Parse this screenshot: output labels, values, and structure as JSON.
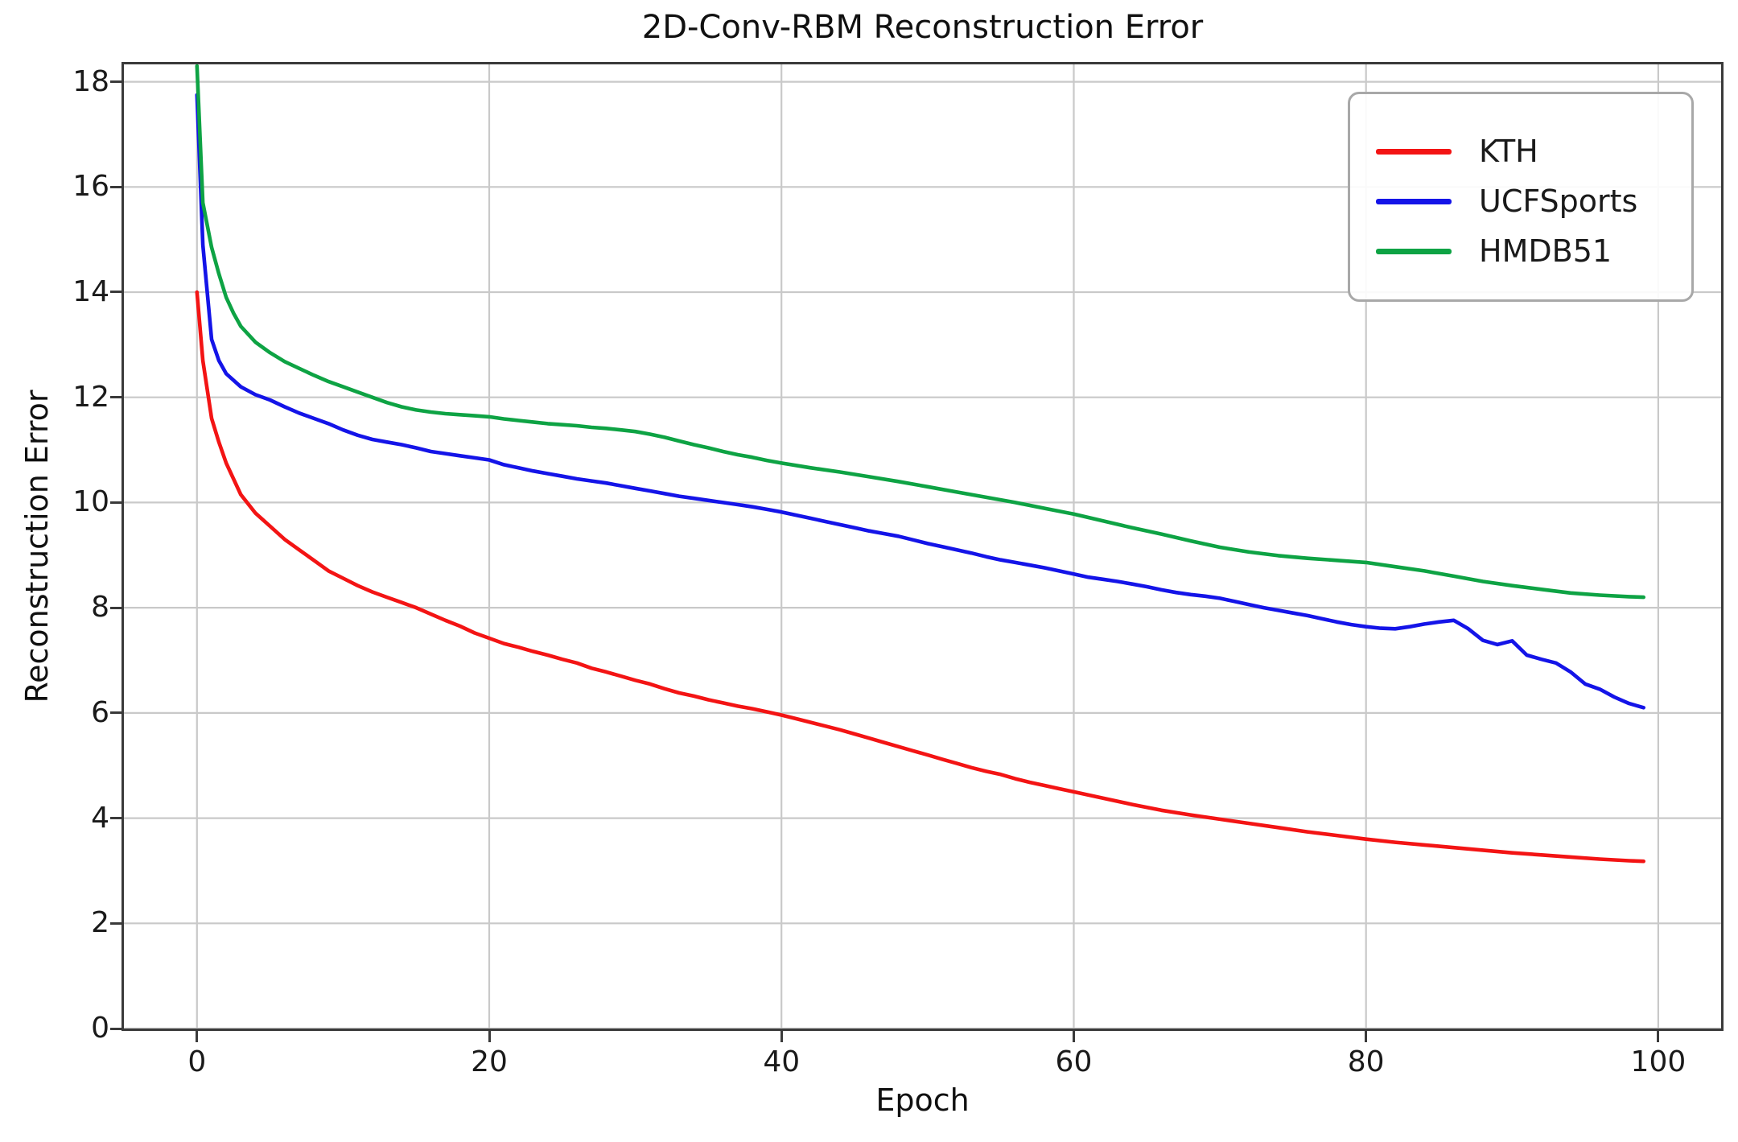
{
  "figure": {
    "title": "2D-Conv-RBM Reconstruction Error",
    "xlabel": "Epoch",
    "ylabel": "Reconstruction Error"
  },
  "colors": {
    "grid": "#c9c9c9",
    "spine": "#3a3a3a",
    "kth": "#f31414",
    "ucfsports": "#1414e8",
    "hmdb51": "#0ea344"
  },
  "chart_data": {
    "type": "line",
    "title": "2D-Conv-RBM Reconstruction Error",
    "xlabel": "Epoch",
    "ylabel": "Reconstruction Error",
    "xlim": [
      -5.0,
      104.3
    ],
    "ylim": [
      0,
      18.33
    ],
    "x_ticks": [
      0,
      20,
      40,
      60,
      80,
      100
    ],
    "y_ticks": [
      0,
      2,
      4,
      6,
      8,
      10,
      12,
      14,
      16,
      18
    ],
    "grid": true,
    "legend_position": "upper right",
    "series": [
      {
        "name": "KTH",
        "color": "#f31414",
        "points": [
          [
            0,
            14.0
          ],
          [
            0.4,
            12.7
          ],
          [
            1,
            11.6
          ],
          [
            1.5,
            11.15
          ],
          [
            2,
            10.75
          ],
          [
            2.5,
            10.45
          ],
          [
            3,
            10.15
          ],
          [
            4,
            9.8
          ],
          [
            5,
            9.55
          ],
          [
            6,
            9.3
          ],
          [
            7,
            9.1
          ],
          [
            8,
            8.9
          ],
          [
            9,
            8.7
          ],
          [
            10,
            8.56
          ],
          [
            11,
            8.42
          ],
          [
            12,
            8.3
          ],
          [
            13,
            8.2
          ],
          [
            14,
            8.1
          ],
          [
            15,
            8.0
          ],
          [
            16,
            7.88
          ],
          [
            17,
            7.76
          ],
          [
            18,
            7.65
          ],
          [
            19,
            7.52
          ],
          [
            20,
            7.42
          ],
          [
            21,
            7.32
          ],
          [
            22,
            7.25
          ],
          [
            23,
            7.17
          ],
          [
            24,
            7.1
          ],
          [
            25,
            7.02
          ],
          [
            26,
            6.95
          ],
          [
            27,
            6.85
          ],
          [
            28,
            6.78
          ],
          [
            29,
            6.7
          ],
          [
            30,
            6.62
          ],
          [
            31,
            6.55
          ],
          [
            32,
            6.46
          ],
          [
            33,
            6.38
          ],
          [
            34,
            6.32
          ],
          [
            35,
            6.25
          ],
          [
            36,
            6.19
          ],
          [
            37,
            6.13
          ],
          [
            38,
            6.08
          ],
          [
            39,
            6.02
          ],
          [
            40,
            5.96
          ],
          [
            41,
            5.89
          ],
          [
            42,
            5.82
          ],
          [
            43,
            5.75
          ],
          [
            44,
            5.68
          ],
          [
            45,
            5.6
          ],
          [
            46,
            5.52
          ],
          [
            47,
            5.44
          ],
          [
            48,
            5.36
          ],
          [
            49,
            5.28
          ],
          [
            50,
            5.2
          ],
          [
            51,
            5.12
          ],
          [
            52,
            5.04
          ],
          [
            53,
            4.96
          ],
          [
            54,
            4.89
          ],
          [
            55,
            4.83
          ],
          [
            56,
            4.75
          ],
          [
            57,
            4.68
          ],
          [
            58,
            4.62
          ],
          [
            59,
            4.56
          ],
          [
            60,
            4.5
          ],
          [
            62,
            4.38
          ],
          [
            64,
            4.26
          ],
          [
            66,
            4.15
          ],
          [
            68,
            4.06
          ],
          [
            70,
            3.98
          ],
          [
            72,
            3.9
          ],
          [
            74,
            3.82
          ],
          [
            76,
            3.74
          ],
          [
            78,
            3.67
          ],
          [
            80,
            3.6
          ],
          [
            82,
            3.54
          ],
          [
            84,
            3.49
          ],
          [
            86,
            3.44
          ],
          [
            88,
            3.39
          ],
          [
            90,
            3.34
          ],
          [
            92,
            3.3
          ],
          [
            94,
            3.26
          ],
          [
            96,
            3.22
          ],
          [
            98,
            3.19
          ],
          [
            99,
            3.18
          ]
        ]
      },
      {
        "name": "UCFSports",
        "color": "#1414e8",
        "points": [
          [
            0,
            17.75
          ],
          [
            0.4,
            14.9
          ],
          [
            1,
            13.1
          ],
          [
            1.5,
            12.7
          ],
          [
            2,
            12.45
          ],
          [
            3,
            12.2
          ],
          [
            4,
            12.05
          ],
          [
            5,
            11.95
          ],
          [
            6,
            11.82
          ],
          [
            7,
            11.7
          ],
          [
            8,
            11.6
          ],
          [
            9,
            11.5
          ],
          [
            10,
            11.38
          ],
          [
            11,
            11.28
          ],
          [
            12,
            11.2
          ],
          [
            13,
            11.15
          ],
          [
            14,
            11.1
          ],
          [
            15,
            11.04
          ],
          [
            16,
            10.97
          ],
          [
            17,
            10.93
          ],
          [
            18,
            10.89
          ],
          [
            19,
            10.85
          ],
          [
            20,
            10.81
          ],
          [
            21,
            10.72
          ],
          [
            22,
            10.66
          ],
          [
            23,
            10.6
          ],
          [
            24,
            10.55
          ],
          [
            25,
            10.5
          ],
          [
            26,
            10.45
          ],
          [
            27,
            10.41
          ],
          [
            28,
            10.37
          ],
          [
            29,
            10.32
          ],
          [
            30,
            10.27
          ],
          [
            31,
            10.22
          ],
          [
            32,
            10.17
          ],
          [
            33,
            10.12
          ],
          [
            34,
            10.08
          ],
          [
            35,
            10.04
          ],
          [
            36,
            10.0
          ],
          [
            37,
            9.96
          ],
          [
            38,
            9.92
          ],
          [
            39,
            9.87
          ],
          [
            40,
            9.82
          ],
          [
            41,
            9.76
          ],
          [
            42,
            9.7
          ],
          [
            43,
            9.64
          ],
          [
            44,
            9.58
          ],
          [
            45,
            9.52
          ],
          [
            46,
            9.46
          ],
          [
            47,
            9.41
          ],
          [
            48,
            9.36
          ],
          [
            49,
            9.29
          ],
          [
            50,
            9.22
          ],
          [
            51,
            9.16
          ],
          [
            52,
            9.1
          ],
          [
            53,
            9.04
          ],
          [
            54,
            8.97
          ],
          [
            55,
            8.91
          ],
          [
            56,
            8.86
          ],
          [
            57,
            8.81
          ],
          [
            58,
            8.76
          ],
          [
            59,
            8.7
          ],
          [
            60,
            8.64
          ],
          [
            61,
            8.58
          ],
          [
            62,
            8.54
          ],
          [
            63,
            8.5
          ],
          [
            64,
            8.45
          ],
          [
            65,
            8.4
          ],
          [
            66,
            8.34
          ],
          [
            67,
            8.29
          ],
          [
            68,
            8.25
          ],
          [
            69,
            8.22
          ],
          [
            70,
            8.18
          ],
          [
            71,
            8.12
          ],
          [
            72,
            8.06
          ],
          [
            73,
            8.0
          ],
          [
            74,
            7.95
          ],
          [
            75,
            7.9
          ],
          [
            76,
            7.85
          ],
          [
            77,
            7.79
          ],
          [
            78,
            7.73
          ],
          [
            79,
            7.68
          ],
          [
            80,
            7.64
          ],
          [
            81,
            7.61
          ],
          [
            82,
            7.6
          ],
          [
            83,
            7.64
          ],
          [
            84,
            7.69
          ],
          [
            85,
            7.73
          ],
          [
            86,
            7.76
          ],
          [
            87,
            7.6
          ],
          [
            88,
            7.38
          ],
          [
            89,
            7.3
          ],
          [
            90,
            7.37
          ],
          [
            91,
            7.1
          ],
          [
            92,
            7.02
          ],
          [
            93,
            6.95
          ],
          [
            94,
            6.78
          ],
          [
            95,
            6.55
          ],
          [
            96,
            6.45
          ],
          [
            97,
            6.3
          ],
          [
            98,
            6.18
          ],
          [
            99,
            6.1
          ]
        ]
      },
      {
        "name": "HMDB51",
        "color": "#0ea344",
        "points": [
          [
            0,
            18.3
          ],
          [
            0.4,
            15.7
          ],
          [
            1,
            14.85
          ],
          [
            1.5,
            14.35
          ],
          [
            2,
            13.9
          ],
          [
            2.5,
            13.6
          ],
          [
            3,
            13.35
          ],
          [
            4,
            13.05
          ],
          [
            5,
            12.85
          ],
          [
            6,
            12.68
          ],
          [
            7,
            12.55
          ],
          [
            8,
            12.42
          ],
          [
            9,
            12.3
          ],
          [
            10,
            12.2
          ],
          [
            11,
            12.1
          ],
          [
            12,
            12.0
          ],
          [
            13,
            11.9
          ],
          [
            14,
            11.82
          ],
          [
            15,
            11.76
          ],
          [
            16,
            11.72
          ],
          [
            17,
            11.69
          ],
          [
            18,
            11.67
          ],
          [
            19,
            11.65
          ],
          [
            20,
            11.63
          ],
          [
            21,
            11.59
          ],
          [
            22,
            11.56
          ],
          [
            23,
            11.53
          ],
          [
            24,
            11.5
          ],
          [
            25,
            11.48
          ],
          [
            26,
            11.46
          ],
          [
            27,
            11.43
          ],
          [
            28,
            11.41
          ],
          [
            29,
            11.38
          ],
          [
            30,
            11.35
          ],
          [
            31,
            11.3
          ],
          [
            32,
            11.24
          ],
          [
            33,
            11.17
          ],
          [
            34,
            11.1
          ],
          [
            35,
            11.04
          ],
          [
            36,
            10.97
          ],
          [
            37,
            10.91
          ],
          [
            38,
            10.86
          ],
          [
            39,
            10.8
          ],
          [
            40,
            10.75
          ],
          [
            42,
            10.66
          ],
          [
            44,
            10.58
          ],
          [
            46,
            10.49
          ],
          [
            48,
            10.4
          ],
          [
            50,
            10.3
          ],
          [
            52,
            10.2
          ],
          [
            54,
            10.1
          ],
          [
            56,
            10.0
          ],
          [
            58,
            9.89
          ],
          [
            60,
            9.78
          ],
          [
            62,
            9.65
          ],
          [
            64,
            9.52
          ],
          [
            66,
            9.4
          ],
          [
            68,
            9.27
          ],
          [
            70,
            9.15
          ],
          [
            72,
            9.06
          ],
          [
            74,
            8.99
          ],
          [
            76,
            8.94
          ],
          [
            78,
            8.9
          ],
          [
            80,
            8.86
          ],
          [
            82,
            8.78
          ],
          [
            84,
            8.7
          ],
          [
            86,
            8.6
          ],
          [
            88,
            8.5
          ],
          [
            90,
            8.42
          ],
          [
            92,
            8.35
          ],
          [
            94,
            8.28
          ],
          [
            96,
            8.24
          ],
          [
            98,
            8.21
          ],
          [
            99,
            8.2
          ]
        ]
      }
    ]
  }
}
